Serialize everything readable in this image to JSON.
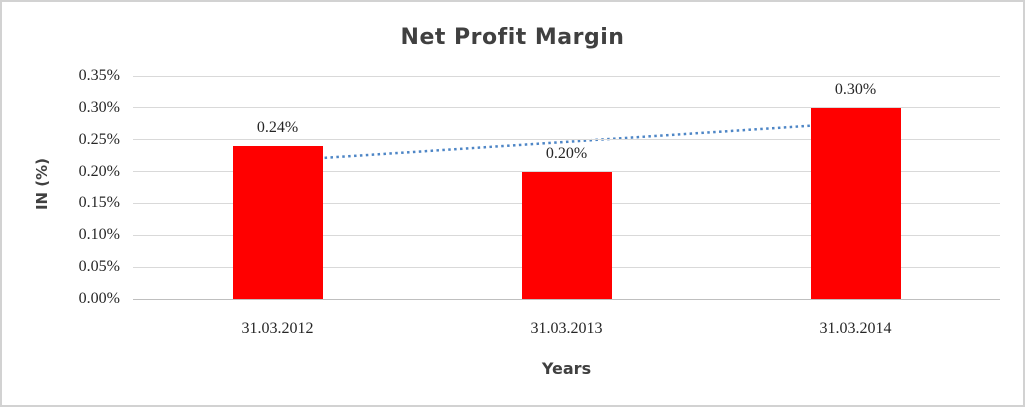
{
  "chart_data": {
    "type": "bar",
    "title": "Net Profit Margin",
    "xlabel": "Years",
    "ylabel": "IN (%)",
    "categories": [
      "31.03.2012",
      "31.03.2013",
      "31.03.2014"
    ],
    "values": [
      0.24,
      0.2,
      0.3
    ],
    "data_labels": [
      "0.24%",
      "0.20%",
      "0.30%"
    ],
    "ylim": [
      0.0,
      0.35
    ],
    "ytick_step": 0.05,
    "ytick_labels": [
      "0.00%",
      "0.05%",
      "0.10%",
      "0.15%",
      "0.20%",
      "0.25%",
      "0.30%",
      "0.35%"
    ],
    "grid": true,
    "legend": "none",
    "trendline": {
      "type": "linear",
      "style": "dotted"
    },
    "colors": {
      "bar": "#ff0000",
      "trendline": "#4e86c6",
      "title_text": "#404040",
      "tick_text": "#262626",
      "gridline": "#d9d9d9",
      "axis_line": "#bfbfbf",
      "frame_border": "#d2d2d2",
      "background": "#ffffff"
    }
  }
}
